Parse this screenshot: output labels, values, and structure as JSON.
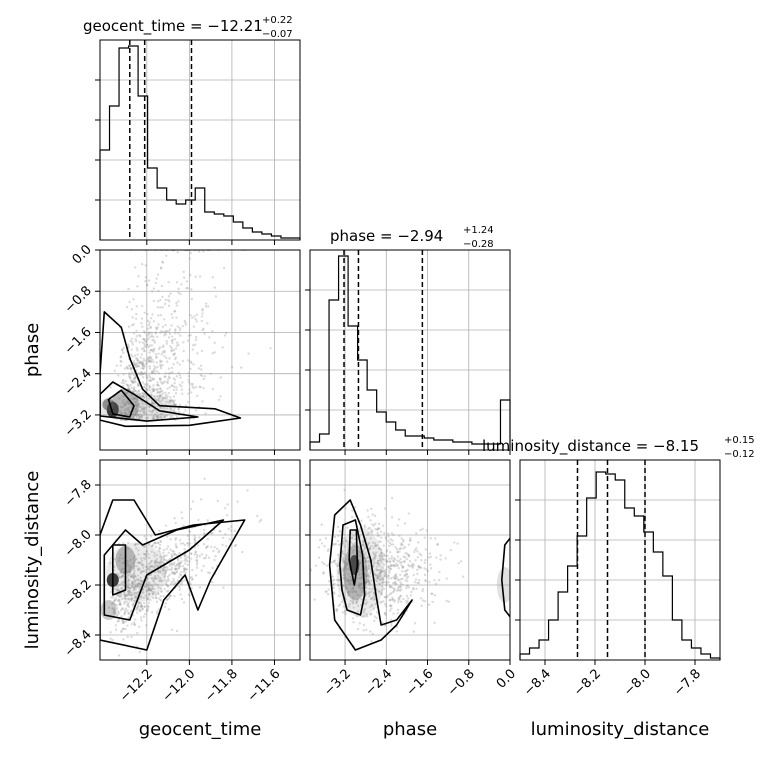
{
  "chart_data": {
    "type": "corner",
    "parameters": [
      {
        "name": "geocent_time",
        "title_prefix": "geocent_time = −12.21",
        "title_plus": "+0.22",
        "title_minus": "−0.07",
        "range": [
          -12.42,
          -11.48
        ],
        "ticks": [
          -12.2,
          -12.0,
          -11.8,
          -11.6
        ],
        "tick_labels": [
          "−12.2",
          "−12.0",
          "−11.8",
          "−11.6"
        ],
        "quantiles": [
          -12.28,
          -12.21,
          -11.99
        ],
        "hist": [
          0.45,
          0.67,
          0.96,
          0.97,
          0.72,
          0.36,
          0.26,
          0.2,
          0.18,
          0.2,
          0.26,
          0.14,
          0.13,
          0.12,
          0.09,
          0.06,
          0.04,
          0.03,
          0.02,
          0.01,
          0.01
        ]
      },
      {
        "name": "phase",
        "title_prefix": "phase = −2.94",
        "title_plus": "+1.24",
        "title_minus": "−0.28",
        "range": [
          -3.88,
          0.0
        ],
        "ticks": [
          -3.2,
          -2.4,
          -1.6,
          -0.8,
          0.0
        ],
        "tick_labels": [
          "−3.2",
          "−2.4",
          "−1.6",
          "−0.8",
          "0.0"
        ],
        "quantiles": [
          -3.22,
          -2.94,
          -1.7
        ],
        "hist": [
          0.04,
          0.08,
          0.75,
          0.97,
          0.62,
          0.45,
          0.3,
          0.19,
          0.14,
          0.1,
          0.07,
          0.07,
          0.06,
          0.05,
          0.05,
          0.04,
          0.04,
          0.03,
          0.03,
          0.03,
          0.25
        ]
      },
      {
        "name": "luminosity_distance",
        "title_prefix": "luminosity_distance = −8.15",
        "title_plus": "+0.15",
        "title_minus": "−0.12",
        "range": [
          -8.5,
          -7.7
        ],
        "ticks": [
          -8.4,
          -8.2,
          -8.0,
          -7.8
        ],
        "tick_labels": [
          "−8.4",
          "−8.2",
          "−8.0",
          "−7.8"
        ],
        "quantiles": [
          -8.27,
          -8.15,
          -8.0
        ],
        "hist": [
          0.03,
          0.06,
          0.1,
          0.2,
          0.34,
          0.47,
          0.62,
          0.81,
          0.94,
          0.93,
          0.9,
          0.76,
          0.72,
          0.64,
          0.54,
          0.42,
          0.2,
          0.1,
          0.06,
          0.03,
          0.01
        ]
      }
    ],
    "y_axis_labels": {
      "phase": [
        "0.0",
        "−0.8",
        "−1.6",
        "−2.4",
        "−3.2"
      ],
      "luminosity_distance": [
        "−7.8",
        "−8.0",
        "−8.2",
        "−8.4"
      ]
    },
    "grid": true,
    "scatter_color": "#999999",
    "contour_color": "#000000",
    "quantile_line_style": "dashed"
  }
}
